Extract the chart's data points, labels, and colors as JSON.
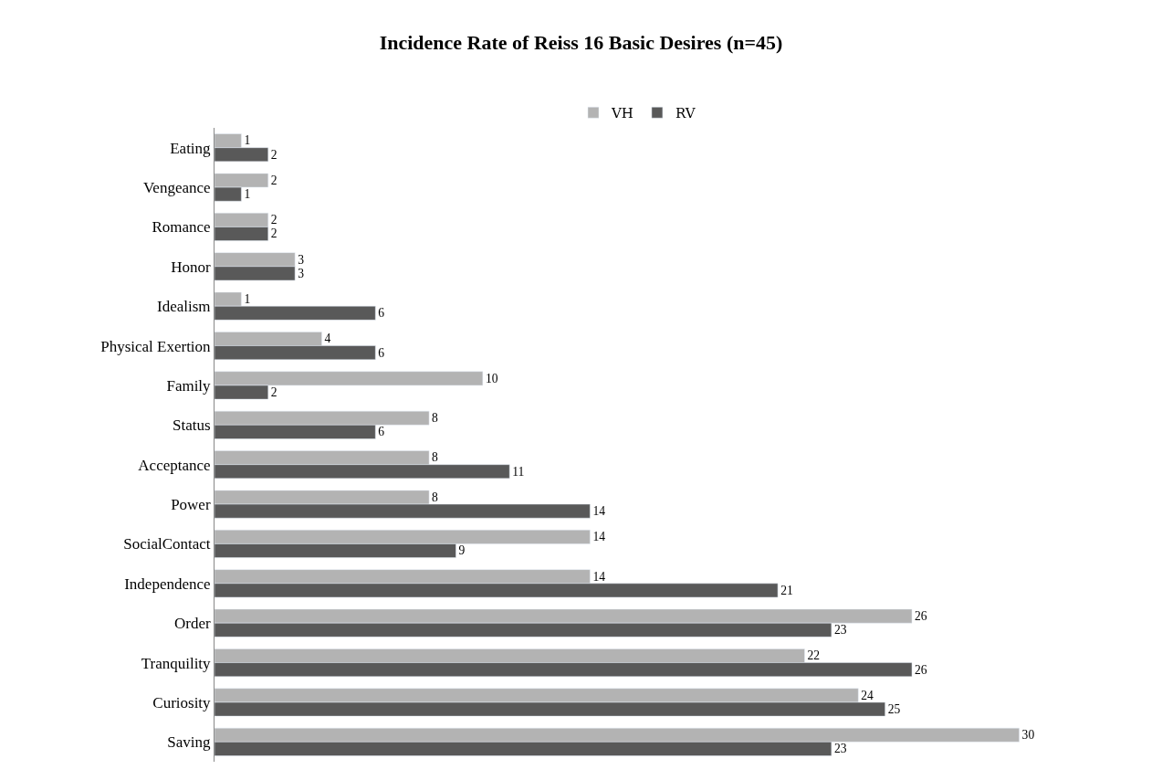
{
  "chart_data": {
    "type": "bar",
    "orientation": "horizontal",
    "title": "Incidence Rate of Reiss 16 Basic Desires (n=45)",
    "categories": [
      "Eating",
      "Vengeance",
      "Romance",
      "Honor",
      "Idealism",
      "Physical Exertion",
      "Family",
      "Status",
      "Acceptance",
      "Power",
      "SocialContact",
      "Independence",
      "Order",
      "Tranquility",
      "Curiosity",
      "Saving"
    ],
    "series": [
      {
        "name": "VH",
        "color": "#b3b3b3",
        "values": [
          1,
          2,
          2,
          3,
          1,
          4,
          10,
          8,
          8,
          8,
          14,
          14,
          26,
          22,
          24,
          30
        ]
      },
      {
        "name": "RV",
        "color": "#595959",
        "values": [
          2,
          1,
          2,
          3,
          6,
          6,
          2,
          6,
          11,
          14,
          9,
          21,
          23,
          26,
          25,
          23
        ]
      }
    ],
    "data_labels": true,
    "legend": "top"
  }
}
